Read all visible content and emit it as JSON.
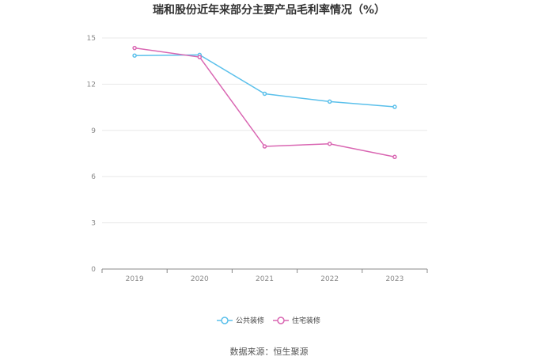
{
  "title": "瑞和股份近年来部分主要产品毛利率情况（%）",
  "source": "数据来源：恒生聚源",
  "chart_data": {
    "type": "line",
    "title": "瑞和股份近年来部分主要产品毛利率情况（%）",
    "x": [
      "2019",
      "2020",
      "2021",
      "2022",
      "2023"
    ],
    "ylim": [
      0,
      15
    ],
    "yticks": [
      0,
      3,
      6,
      9,
      12,
      15
    ],
    "grid": true,
    "legend_position": "bottom",
    "series": [
      {
        "name": "公共装修",
        "values": [
          13.86,
          13.9,
          11.38,
          10.87,
          10.53
        ],
        "color": "#5bc0eb"
      },
      {
        "name": "住宅装修",
        "values": [
          14.35,
          13.76,
          7.96,
          8.13,
          7.28
        ],
        "color": "#d966b2"
      }
    ]
  }
}
